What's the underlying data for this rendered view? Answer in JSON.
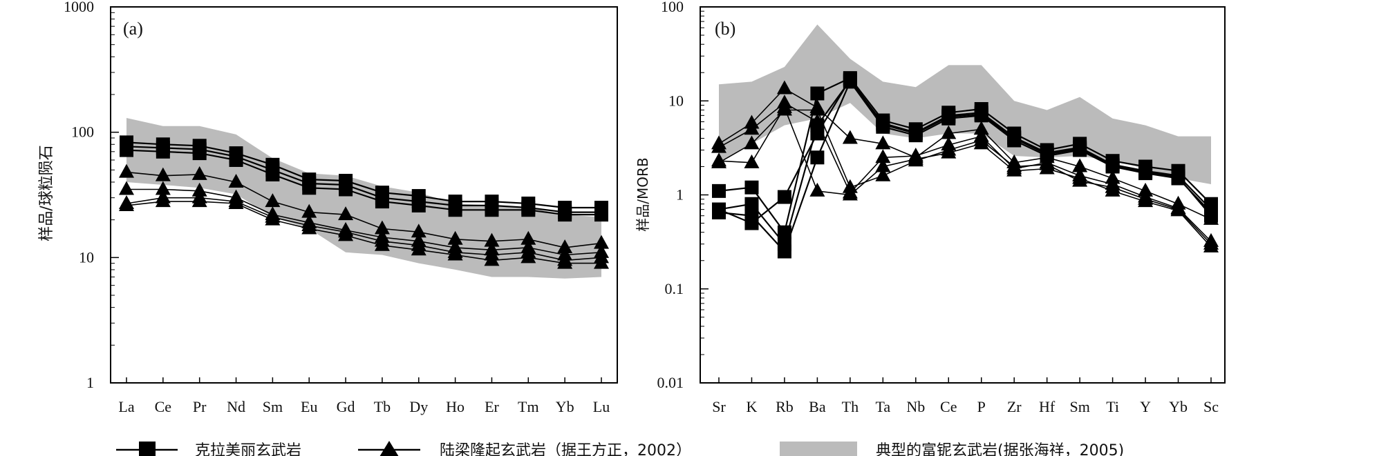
{
  "legend": {
    "square_label": "克拉美丽玄武岩",
    "triangle_label": "陆梁隆起玄武岩（据王方正，2002）",
    "band_label": "典型的富铌玄武岩(据张海祥，2005)"
  },
  "colors": {
    "band": "#bbbbbb",
    "ink": "#000000"
  },
  "chart_data": [
    {
      "type": "line",
      "panel": "(a)",
      "title": "",
      "xlabel": "",
      "ylabel": "样品/球粒陨石",
      "yscale": "log",
      "ylim": [
        1,
        1000
      ],
      "yticks": [
        "1",
        "10",
        "100",
        "1000"
      ],
      "categories": [
        "La",
        "Ce",
        "Pr",
        "Nd",
        "Sm",
        "Eu",
        "Gd",
        "Tb",
        "Dy",
        "Ho",
        "Er",
        "Tm",
        "Yb",
        "Lu"
      ],
      "band": {
        "name": "典型的富铌玄武岩",
        "upper": [
          130,
          112,
          112,
          96,
          62,
          47,
          45,
          37,
          33,
          27,
          26,
          25,
          22,
          21
        ],
        "lower": [
          40,
          38,
          36,
          32,
          21,
          17,
          11,
          10.5,
          9,
          8,
          7,
          7,
          6.8,
          7
        ]
      },
      "series": [
        {
          "name": "克拉美丽玄武岩",
          "marker": "square",
          "values": [
            83,
            80,
            78,
            68,
            55,
            42,
            41,
            33,
            31,
            28,
            28,
            27,
            25,
            25
          ]
        },
        {
          "name": "克拉美丽玄武岩",
          "marker": "square",
          "values": [
            77,
            75,
            73,
            64,
            50,
            39,
            38,
            30,
            28,
            26,
            26,
            25,
            23,
            23
          ]
        },
        {
          "name": "克拉美丽玄武岩",
          "marker": "square",
          "values": [
            72,
            70,
            68,
            60,
            46,
            36,
            35,
            28,
            26,
            24,
            24,
            24,
            22,
            22
          ]
        },
        {
          "name": "陆梁隆起玄武岩",
          "marker": "triangle",
          "values": [
            48,
            45,
            46,
            40,
            28,
            23,
            22,
            17,
            16,
            14,
            13.5,
            14,
            12,
            13
          ]
        },
        {
          "name": "陆梁隆起玄武岩",
          "marker": "triangle",
          "values": [
            35,
            35,
            34,
            30,
            22,
            19,
            16.5,
            14.5,
            13.5,
            12,
            11.5,
            12,
            10.5,
            11
          ]
        },
        {
          "name": "陆梁隆起玄武岩",
          "marker": "triangle",
          "values": [
            27,
            30,
            30,
            28,
            21,
            18,
            16,
            13.5,
            12.5,
            11,
            10.5,
            11,
            9.5,
            10
          ]
        },
        {
          "name": "陆梁隆起玄武岩",
          "marker": "triangle",
          "values": [
            26,
            28,
            28,
            27,
            20,
            17,
            15,
            12.5,
            11.5,
            10.5,
            9.5,
            10,
            9,
            9
          ]
        }
      ]
    },
    {
      "type": "line",
      "panel": "(b)",
      "title": "",
      "xlabel": "",
      "ylabel": "样品/MORB",
      "yscale": "log",
      "ylim": [
        0.01,
        100
      ],
      "yticks": [
        "0.01",
        "0.1",
        "1",
        "10",
        "100"
      ],
      "categories": [
        "Sr",
        "K",
        "Rb",
        "Ba",
        "Th",
        "Ta",
        "Nb",
        "Ce",
        "P",
        "Zr",
        "Hf",
        "Sm",
        "Ti",
        "Y",
        "Yb",
        "Sc"
      ],
      "band": {
        "name": "典型的富铌玄武岩",
        "upper": [
          15,
          16,
          23,
          65,
          28,
          16,
          14,
          24,
          24,
          10,
          8,
          11,
          6.5,
          5.5,
          4.2,
          4.2
        ],
        "lower": [
          2.2,
          3.5,
          5.5,
          6.5,
          9.5,
          4.5,
          4,
          4.5,
          4.5,
          2.6,
          2.5,
          2.6,
          2.3,
          1.9,
          1.5,
          1.3
        ]
      },
      "series": [
        {
          "name": "克拉美丽玄武岩",
          "marker": "square",
          "values": [
            1.1,
            1.2,
            0.4,
            12,
            17.5,
            6.2,
            5,
            7.5,
            8.2,
            4.5,
            3,
            3.5,
            2.3,
            2,
            1.8,
            0.8
          ]
        },
        {
          "name": "克拉美丽玄武岩",
          "marker": "square",
          "values": [
            0.7,
            0.8,
            0.3,
            5.5,
            16.5,
            5.8,
            4.6,
            7,
            7.5,
            4.1,
            2.8,
            3.2,
            2.1,
            1.8,
            1.6,
            0.7
          ]
        },
        {
          "name": "克拉美丽玄武岩",
          "marker": "square",
          "values": [
            0.65,
            0.6,
            0.25,
            2.5,
            16,
            5.3,
            4.3,
            6.5,
            7,
            3.8,
            2.6,
            3,
            2,
            1.7,
            1.5,
            0.65
          ]
        },
        {
          "name": "克拉美丽玄武岩",
          "marker": "square",
          "values": [
            0.7,
            0.5,
            0.95,
            4.5,
            17,
            5.6,
            4.5,
            6.8,
            7.2,
            4,
            2.7,
            3.1,
            2.05,
            1.75,
            1.55,
            0.6
          ]
        },
        {
          "name": "陆梁隆起玄武岩",
          "marker": "triangle",
          "values": [
            3.5,
            5.8,
            13.5,
            8.5,
            4,
            3.5,
            2.5,
            4.5,
            5,
            2.2,
            2.5,
            2,
            1.5,
            1.1,
            0.8,
            0.55
          ]
        },
        {
          "name": "陆梁隆起玄武岩",
          "marker": "triangle",
          "values": [
            3.2,
            5,
            9.5,
            6,
            1.05,
            2.5,
            2.6,
            3.4,
            4.2,
            1.9,
            2.2,
            1.6,
            1.3,
            0.95,
            0.72,
            0.32
          ]
        },
        {
          "name": "陆梁隆起玄武岩",
          "marker": "triangle",
          "values": [
            2.3,
            2.2,
            8.5,
            1.1,
            1,
            2,
            2.4,
            2.8,
            3.5,
            1.8,
            1.9,
            1.5,
            1.1,
            0.85,
            0.68,
            0.28
          ]
        },
        {
          "name": "陆梁隆起玄武岩",
          "marker": "triangle",
          "values": [
            2.2,
            3.5,
            8,
            8,
            1.2,
            1.6,
            2.3,
            3,
            3.8,
            2,
            2.1,
            1.4,
            1.2,
            0.9,
            0.7,
            0.3
          ]
        }
      ]
    }
  ]
}
